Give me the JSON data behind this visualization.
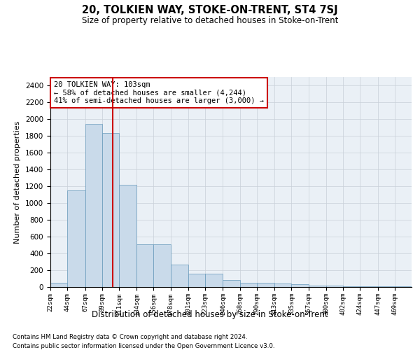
{
  "title": "20, TOLKIEN WAY, STOKE-ON-TRENT, ST4 7SJ",
  "subtitle": "Size of property relative to detached houses in Stoke-on-Trent",
  "xlabel": "Distribution of detached houses by size in Stoke-on-Trent",
  "ylabel": "Number of detached properties",
  "footnote1": "Contains HM Land Registry data © Crown copyright and database right 2024.",
  "footnote2": "Contains public sector information licensed under the Open Government Licence v3.0.",
  "property_size": 103,
  "property_label": "20 TOLKIEN WAY: 103sqm",
  "annotation_line1": "← 58% of detached houses are smaller (4,244)",
  "annotation_line2": "41% of semi-detached houses are larger (3,000) →",
  "bar_color": "#c9daea",
  "bar_edge_color": "#6699bb",
  "line_color": "#cc0000",
  "annotation_box_color": "#ffffff",
  "annotation_box_edge": "#cc0000",
  "grid_color": "#c8d0d8",
  "background_color": "#eaf0f6",
  "bin_labels": [
    "22sqm",
    "44sqm",
    "67sqm",
    "89sqm",
    "111sqm",
    "134sqm",
    "156sqm",
    "178sqm",
    "201sqm",
    "223sqm",
    "246sqm",
    "268sqm",
    "290sqm",
    "313sqm",
    "335sqm",
    "357sqm",
    "380sqm",
    "402sqm",
    "424sqm",
    "447sqm",
    "469sqm"
  ],
  "bin_edges": [
    22,
    44,
    67,
    89,
    111,
    134,
    156,
    178,
    201,
    223,
    246,
    268,
    290,
    313,
    335,
    357,
    380,
    402,
    424,
    447,
    469,
    491
  ],
  "bar_heights": [
    50,
    1150,
    1940,
    1830,
    1220,
    510,
    510,
    270,
    160,
    160,
    80,
    50,
    50,
    40,
    35,
    20,
    15,
    10,
    5,
    5,
    5
  ],
  "ylim": [
    0,
    2500
  ],
  "yticks": [
    0,
    200,
    400,
    600,
    800,
    1000,
    1200,
    1400,
    1600,
    1800,
    2000,
    2200,
    2400
  ]
}
